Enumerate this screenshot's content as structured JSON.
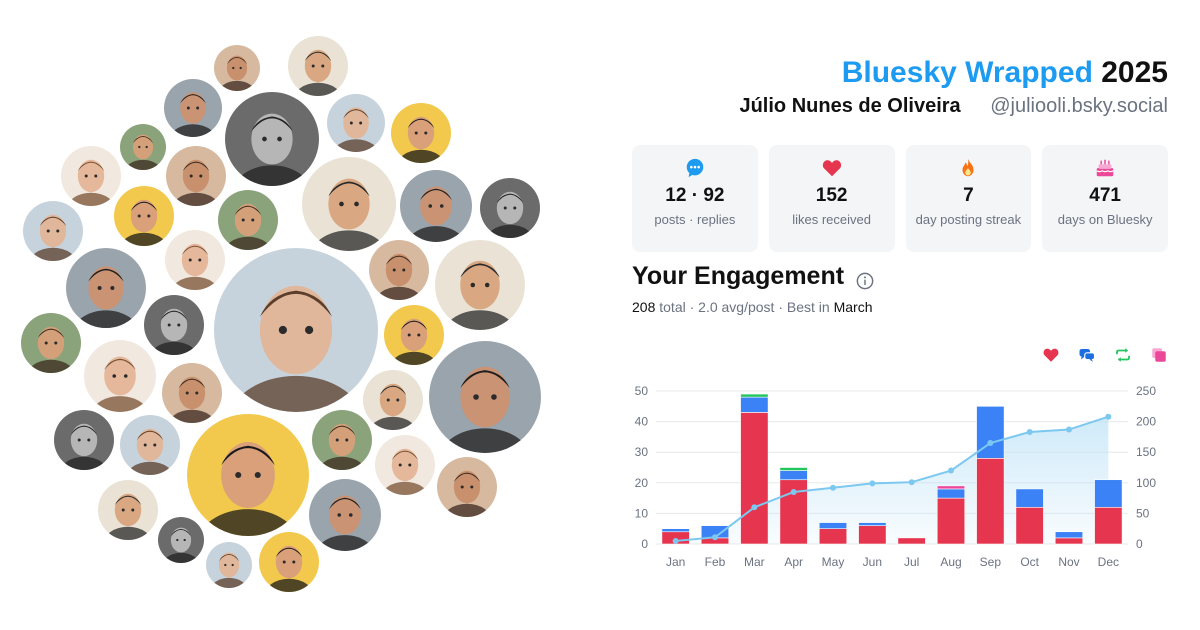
{
  "header": {
    "brand": "Bluesky Wrapped",
    "year": "2025",
    "user_name": "Júlio Nunes de Oliveira",
    "user_handle": "@juliooli.bsky.social"
  },
  "stats": [
    {
      "value": "12 · 92",
      "label": "posts · replies",
      "icon": "chat-bubble-icon",
      "color": "#1d9bf0"
    },
    {
      "value": "152",
      "label": "likes received",
      "icon": "heart-icon",
      "color": "#e5354f"
    },
    {
      "value": "7",
      "label": "day posting streak",
      "icon": "flame-icon",
      "color": "#f97316"
    },
    {
      "value": "471",
      "label": "days on Bluesky",
      "icon": "cake-icon",
      "color": "#ec4899"
    }
  ],
  "engagement": {
    "title": "Your Engagement",
    "total": "208",
    "total_label": "total",
    "avg": "2.0 avg/post",
    "best_prefix": "Best in",
    "best_month": "March",
    "legend_icons": [
      {
        "icon": "heart-icon",
        "color": "#e5354f"
      },
      {
        "icon": "reply-icon",
        "color": "#1d6fe0"
      },
      {
        "icon": "repost-icon",
        "color": "#22c55e"
      },
      {
        "icon": "quote-icon",
        "color": "#ec4899"
      }
    ]
  },
  "chart_data": {
    "type": "bar",
    "categories": [
      "Jan",
      "Feb",
      "Mar",
      "Apr",
      "May",
      "Jun",
      "Jul",
      "Aug",
      "Sep",
      "Oct",
      "Nov",
      "Dec"
    ],
    "series": [
      {
        "values": [
          4,
          2,
          43,
          21,
          5,
          6,
          2,
          15,
          28,
          12,
          2,
          12
        ],
        "color": "#e5354f"
      },
      {
        "values": [
          1,
          4,
          5,
          3,
          2,
          1,
          0,
          3,
          17,
          6,
          2,
          9
        ],
        "color": "#3b82f6"
      },
      {
        "values": [
          0,
          0,
          1,
          1,
          0,
          0,
          0,
          0,
          0,
          0,
          0,
          0
        ],
        "color": "#22c55e"
      },
      {
        "values": [
          0,
          0,
          0,
          0,
          0,
          0,
          0,
          1,
          0,
          0,
          0,
          0
        ],
        "color": "#ec4899"
      }
    ],
    "cumulative": [
      5,
      11,
      60,
      85,
      92,
      99,
      101,
      120,
      165,
      183,
      187,
      208
    ],
    "cumulative_color": "#7cc8f0",
    "ylim": [
      0,
      50
    ],
    "yticks": [
      0,
      10,
      20,
      30,
      40,
      50
    ],
    "y2lim": [
      0,
      250
    ],
    "y2ticks": [
      0,
      50,
      100,
      150,
      200,
      250
    ],
    "grid": true
  },
  "avatar_palette": [
    {
      "bg": "#d7b9a0",
      "face": "#c8906c",
      "hair": "#3b2a20"
    },
    {
      "bg": "#e9e2d5",
      "face": "#d9a882",
      "hair": "#2a2a2a"
    },
    {
      "bg": "#9aa4ad",
      "face": "#c99374",
      "hair": "#1f1f1f"
    },
    {
      "bg": "#6b6b6b",
      "face": "#b6b6b6",
      "hair": "#222"
    },
    {
      "bg": "#c7d3dc",
      "face": "#e0b79a",
      "hair": "#5b3e2b"
    },
    {
      "bg": "#f2c94c",
      "face": "#d9a07a",
      "hair": "#1a1a1a"
    },
    {
      "bg": "#8aa37b",
      "face": "#d3a079",
      "hair": "#3a2a1e"
    },
    {
      "bg": "#f1e8df",
      "face": "#e5b89c",
      "hair": "#7a5234"
    }
  ]
}
